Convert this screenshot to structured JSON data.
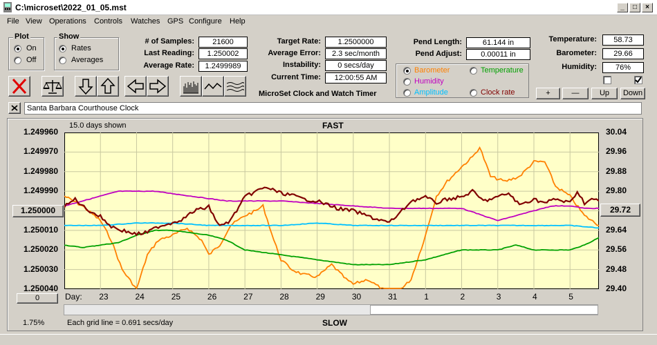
{
  "window": {
    "title": "C:\\microset\\2022_01_05.mst"
  },
  "menu": [
    "File",
    "View",
    "Operations",
    "Controls",
    "Watches",
    "GPS",
    "Configure",
    "Help"
  ],
  "plot_group": {
    "label": "Plot",
    "on": "On",
    "off": "Off",
    "selected": "On"
  },
  "show_group": {
    "label": "Show",
    "rates": "Rates",
    "averages": "Averages",
    "selected": "Rates"
  },
  "stats": {
    "samples_label": "# of Samples:",
    "samples": "21600",
    "last_reading_label": "Last Reading:",
    "last_reading": "1.250002",
    "average_rate_label": "Average Rate:",
    "average_rate": "1.2499989",
    "target_rate_label": "Target Rate:",
    "target_rate": "1.2500000",
    "average_error_label": "Average Error:",
    "average_error": "2.3 sec/month",
    "instability_label": "Instability:",
    "instability": "0 secs/day",
    "current_time_label": "Current Time:",
    "current_time": "12:00:55 AM",
    "product_name": "MicroSet Clock and Watch Timer",
    "pend_length_label": "Pend Length:",
    "pend_length": "61.144 in",
    "pend_adjust_label": "Pend Adjust:",
    "pend_adjust": "0.00011 in"
  },
  "env": {
    "temperature_label": "Temperature:",
    "temperature": "58.73",
    "barometer_label": "Barometer:",
    "barometer": "29.66",
    "humidity_label": "Humidity:",
    "humidity": "76%"
  },
  "series_select": {
    "selected": "Barometer",
    "options": [
      {
        "name": "Barometer",
        "color": "#ff8000"
      },
      {
        "name": "Temperature",
        "color": "#00a000"
      },
      {
        "name": "Humidity",
        "color": "#c000c0"
      },
      {
        "name": "Amplitude",
        "color": "#00c0ff"
      },
      {
        "name": "Clock rate",
        "color": "#800000"
      }
    ]
  },
  "scale_buttons": {
    "plus": "+",
    "minus": "—",
    "up": "Up",
    "down": "Down"
  },
  "clock_name": "Santa Barbara Courthouse Clock",
  "chart": {
    "days_shown": "15.0 days shown",
    "top_label": "FAST",
    "bottom_label": "SLOW",
    "left_button": "1.250000",
    "right_button": "29.72",
    "bottom_left_button": "0",
    "day_prefix": "Day:",
    "grid_note": "Each grid line = 0.691 secs/day",
    "status_percent": "1.75%"
  },
  "chart_data": {
    "type": "line",
    "x_label": "Day",
    "x_ticks": [
      "23",
      "24",
      "25",
      "26",
      "27",
      "28",
      "29",
      "30",
      "31",
      "1",
      "2",
      "3",
      "4",
      "5"
    ],
    "x_range": [
      22.0,
      36.8
    ],
    "left_axis": {
      "ticks": [
        "1.249960",
        "1.249970",
        "1.249980",
        "1.249990",
        "1.250000",
        "1.250010",
        "1.250020",
        "1.250030",
        "1.250040"
      ],
      "range": [
        1.24996,
        1.25004
      ],
      "inverted": true
    },
    "right_axis": {
      "ticks": [
        "30.04",
        "29.96",
        "29.88",
        "29.80",
        "29.72",
        "29.64",
        "29.56",
        "29.48",
        "29.40"
      ],
      "range": [
        29.4,
        30.04
      ]
    },
    "grid": true,
    "series": [
      {
        "name": "Barometer",
        "axis": "right",
        "color": "#ff8000",
        "x": [
          22.0,
          22.5,
          23.0,
          23.3,
          23.6,
          24.0,
          24.3,
          24.6,
          25.0,
          25.4,
          25.8,
          26.0,
          26.3,
          26.6,
          27.0,
          27.3,
          27.5,
          27.8,
          28.0,
          28.3,
          28.6,
          29.0,
          29.4,
          29.8,
          30.0,
          30.4,
          30.8,
          31.2,
          31.6,
          32.0,
          32.3,
          32.6,
          33.0,
          33.3,
          33.5,
          33.8,
          34.2,
          34.6,
          35.0,
          35.3,
          35.6,
          36.0,
          36.4,
          36.8
        ],
        "y": [
          29.78,
          29.74,
          29.68,
          29.6,
          29.48,
          29.4,
          29.54,
          29.6,
          29.62,
          29.65,
          29.6,
          29.54,
          29.58,
          29.66,
          29.7,
          29.72,
          29.74,
          29.6,
          29.52,
          29.48,
          29.46,
          29.45,
          29.5,
          29.44,
          29.42,
          29.44,
          29.4,
          29.38,
          29.44,
          29.62,
          29.78,
          29.84,
          29.9,
          29.94,
          29.98,
          29.86,
          29.84,
          29.86,
          29.92,
          29.92,
          29.82,
          29.78,
          29.7,
          29.66
        ]
      },
      {
        "name": "Temperature",
        "axis": "right",
        "color": "#00a000",
        "x": [
          22.0,
          22.5,
          23.0,
          23.5,
          24.0,
          24.5,
          25.0,
          25.5,
          26.0,
          26.5,
          27.0,
          28.0,
          29.0,
          30.0,
          31.0,
          32.0,
          32.5,
          33.0,
          34.0,
          34.5,
          35.0,
          35.5,
          36.0,
          36.4,
          36.8
        ],
        "y": [
          29.58,
          29.57,
          29.58,
          29.59,
          29.62,
          29.64,
          29.64,
          29.63,
          29.62,
          29.6,
          29.56,
          29.54,
          29.52,
          29.5,
          29.5,
          29.52,
          29.54,
          29.56,
          29.56,
          29.58,
          29.56,
          29.56,
          29.56,
          29.58,
          29.61
        ]
      },
      {
        "name": "Humidity",
        "axis": "right",
        "color": "#c000c0",
        "x": [
          22.0,
          22.5,
          23.0,
          23.5,
          24.0,
          24.5,
          25.0,
          25.5,
          26.0,
          26.5,
          27.0,
          28.0,
          29.0,
          30.0,
          31.0,
          32.0,
          33.0,
          34.0,
          34.5,
          35.0,
          35.5,
          36.0,
          36.4,
          36.8
        ],
        "y": [
          29.74,
          29.76,
          29.78,
          29.8,
          29.8,
          29.8,
          29.79,
          29.78,
          29.77,
          29.76,
          29.76,
          29.76,
          29.75,
          29.74,
          29.73,
          29.73,
          29.73,
          29.68,
          29.7,
          29.72,
          29.74,
          29.74,
          29.73,
          29.73
        ]
      },
      {
        "name": "Amplitude",
        "axis": "right",
        "color": "#00c0ff",
        "x": [
          22.0,
          23.0,
          24.0,
          25.0,
          26.0,
          27.0,
          28.0,
          29.0,
          30.0,
          31.0,
          32.0,
          33.0,
          34.0,
          35.0,
          36.0,
          36.8
        ],
        "y": [
          29.66,
          29.66,
          29.67,
          29.67,
          29.66,
          29.66,
          29.66,
          29.67,
          29.66,
          29.66,
          29.66,
          29.66,
          29.66,
          29.66,
          29.66,
          29.65
        ]
      },
      {
        "name": "Clock rate",
        "axis": "left",
        "color": "#800000",
        "x": [
          22.0,
          22.3,
          22.6,
          23.0,
          23.3,
          23.6,
          24.0,
          24.3,
          24.6,
          25.0,
          25.3,
          25.6,
          26.0,
          26.3,
          26.6,
          27.0,
          27.3,
          27.6,
          28.0,
          28.3,
          28.6,
          29.0,
          29.3,
          29.6,
          30.0,
          30.3,
          30.6,
          31.0,
          31.3,
          31.6,
          32.0,
          32.3,
          32.6,
          33.0,
          33.3,
          33.6,
          34.0,
          34.3,
          34.6,
          35.0,
          35.3,
          35.6,
          36.0,
          36.2,
          36.4,
          36.6,
          36.8
        ],
        "y": [
          1.249998,
          1.249994,
          1.249999,
          1.250003,
          1.250008,
          1.25001,
          1.250012,
          1.250011,
          1.250008,
          1.250006,
          1.250004,
          1.25,
          1.249998,
          1.250008,
          1.250005,
          1.249993,
          1.24999,
          1.249988,
          1.249991,
          1.249992,
          1.249994,
          1.249995,
          1.249997,
          1.249999,
          1.25,
          1.250002,
          1.250004,
          1.250006,
          1.250001,
          1.249995,
          1.249993,
          1.249996,
          1.249994,
          1.249993,
          1.24999,
          1.249995,
          1.249993,
          1.249991,
          1.249997,
          1.249994,
          1.249996,
          1.249994,
          1.249996,
          1.24999,
          1.249996,
          1.249994,
          1.249995
        ]
      }
    ]
  }
}
